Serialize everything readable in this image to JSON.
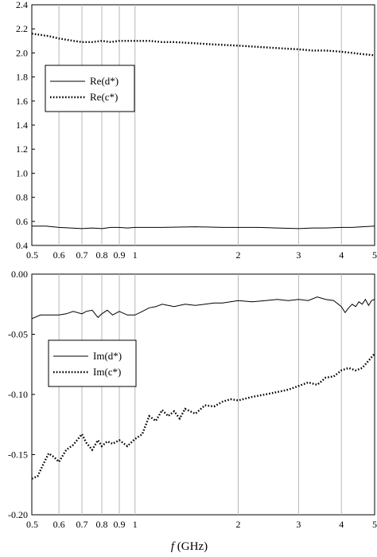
{
  "chart_data": [
    {
      "type": "line",
      "x_scale": "log",
      "xlim": [
        0.5,
        5
      ],
      "ylim": [
        0.4,
        2.4
      ],
      "y_ticks": [
        "0.4",
        "0.6",
        "0.8",
        "1.0",
        "1.2",
        "1.4",
        "1.6",
        "1.8",
        "2.0",
        "2.2",
        "2.4"
      ],
      "x_ticks": [
        "0.5",
        "0.6",
        "0.7",
        "0.8",
        "0.9",
        "1",
        "2",
        "3",
        "4",
        "5"
      ],
      "grid": "vertical",
      "legend": "center-left",
      "series": [
        {
          "name": "Re(d*)",
          "style": "solid",
          "color": "#000000",
          "x": [
            0.5,
            0.55,
            0.6,
            0.65,
            0.7,
            0.75,
            0.8,
            0.85,
            0.9,
            0.95,
            1.0,
            1.2,
            1.5,
            1.8,
            2.0,
            2.3,
            2.6,
            3.0,
            3.3,
            3.6,
            4.0,
            4.3,
            4.6,
            5.0
          ],
          "y": [
            0.56,
            0.56,
            0.55,
            0.545,
            0.54,
            0.545,
            0.54,
            0.55,
            0.55,
            0.545,
            0.55,
            0.55,
            0.555,
            0.55,
            0.55,
            0.55,
            0.545,
            0.54,
            0.545,
            0.545,
            0.55,
            0.55,
            0.555,
            0.56
          ]
        },
        {
          "name": "Re(c*)",
          "style": "dotted",
          "color": "#000000",
          "x": [
            0.5,
            0.53,
            0.56,
            0.6,
            0.63,
            0.66,
            0.7,
            0.75,
            0.8,
            0.85,
            0.9,
            0.95,
            1.0,
            1.1,
            1.2,
            1.3,
            1.5,
            1.7,
            2.0,
            2.3,
            2.6,
            3.0,
            3.3,
            3.6,
            4.0,
            4.3,
            4.6,
            5.0
          ],
          "y": [
            2.16,
            2.15,
            2.14,
            2.12,
            2.11,
            2.1,
            2.09,
            2.09,
            2.1,
            2.09,
            2.1,
            2.1,
            2.1,
            2.1,
            2.09,
            2.09,
            2.08,
            2.07,
            2.06,
            2.05,
            2.04,
            2.03,
            2.02,
            2.02,
            2.01,
            2.0,
            1.99,
            1.98
          ]
        }
      ]
    },
    {
      "type": "line",
      "x_scale": "log",
      "xlim": [
        0.5,
        5
      ],
      "ylim": [
        -0.2,
        0.0
      ],
      "y_ticks": [
        "-0.20",
        "-0.15",
        "-0.10",
        "-0.05",
        "0.00"
      ],
      "x_ticks": [
        "0.5",
        "0.6",
        "0.7",
        "0.8",
        "0.9",
        "1",
        "2",
        "3",
        "4",
        "5"
      ],
      "xlabel_italic": "f",
      "xlabel_unit": " (GHz)",
      "grid": "vertical",
      "legend": "center-left",
      "series": [
        {
          "name": "Im(d*)",
          "style": "solid",
          "color": "#000000",
          "x": [
            0.5,
            0.53,
            0.56,
            0.6,
            0.63,
            0.66,
            0.7,
            0.72,
            0.75,
            0.78,
            0.8,
            0.83,
            0.86,
            0.9,
            0.95,
            1.0,
            1.05,
            1.1,
            1.15,
            1.2,
            1.3,
            1.4,
            1.5,
            1.6,
            1.7,
            1.8,
            2.0,
            2.2,
            2.4,
            2.6,
            2.8,
            3.0,
            3.2,
            3.4,
            3.6,
            3.8,
            4.0,
            4.1,
            4.2,
            4.3,
            4.4,
            4.5,
            4.6,
            4.7,
            4.8,
            4.9,
            5.0
          ],
          "y": [
            -0.037,
            -0.034,
            -0.034,
            -0.034,
            -0.033,
            -0.031,
            -0.033,
            -0.031,
            -0.03,
            -0.036,
            -0.033,
            -0.03,
            -0.034,
            -0.031,
            -0.034,
            -0.034,
            -0.031,
            -0.028,
            -0.027,
            -0.025,
            -0.027,
            -0.025,
            -0.026,
            -0.025,
            -0.024,
            -0.024,
            -0.022,
            -0.023,
            -0.022,
            -0.021,
            -0.022,
            -0.021,
            -0.022,
            -0.019,
            -0.021,
            -0.022,
            -0.027,
            -0.032,
            -0.028,
            -0.025,
            -0.027,
            -0.023,
            -0.025,
            -0.021,
            -0.026,
            -0.022,
            -0.021
          ]
        },
        {
          "name": "Im(c*)",
          "style": "dotted",
          "color": "#000000",
          "x": [
            0.5,
            0.52,
            0.54,
            0.56,
            0.58,
            0.6,
            0.63,
            0.66,
            0.7,
            0.72,
            0.75,
            0.78,
            0.8,
            0.83,
            0.86,
            0.9,
            0.95,
            1.0,
            1.05,
            1.1,
            1.15,
            1.2,
            1.25,
            1.3,
            1.35,
            1.4,
            1.5,
            1.6,
            1.7,
            1.8,
            1.9,
            2.0,
            2.2,
            2.4,
            2.6,
            2.8,
            3.0,
            3.2,
            3.4,
            3.6,
            3.8,
            4.0,
            4.2,
            4.4,
            4.6,
            4.8,
            5.0
          ],
          "y": [
            -0.17,
            -0.168,
            -0.158,
            -0.149,
            -0.152,
            -0.156,
            -0.146,
            -0.142,
            -0.133,
            -0.14,
            -0.146,
            -0.138,
            -0.143,
            -0.139,
            -0.141,
            -0.138,
            -0.143,
            -0.137,
            -0.133,
            -0.118,
            -0.122,
            -0.113,
            -0.118,
            -0.114,
            -0.12,
            -0.112,
            -0.116,
            -0.109,
            -0.11,
            -0.106,
            -0.104,
            -0.105,
            -0.102,
            -0.1,
            -0.098,
            -0.096,
            -0.093,
            -0.09,
            -0.092,
            -0.086,
            -0.085,
            -0.08,
            -0.078,
            -0.08,
            -0.078,
            -0.072,
            -0.066
          ]
        }
      ]
    }
  ]
}
